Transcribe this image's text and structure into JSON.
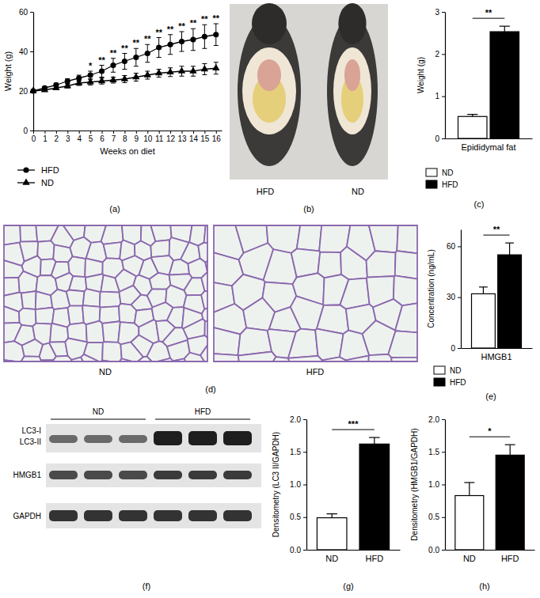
{
  "chart_data": [
    {
      "type": "line",
      "caption": "(a)",
      "x_label": "Weeks on diet",
      "y_label": "Weight (g)",
      "x": [
        0,
        1,
        2,
        3,
        4,
        5,
        6,
        7,
        8,
        9,
        10,
        11,
        12,
        13,
        14,
        15,
        16
      ],
      "xlim": [
        0,
        16.5
      ],
      "xticks": [
        0,
        1,
        2,
        3,
        4,
        5,
        6,
        7,
        8,
        9,
        10,
        11,
        12,
        13,
        14,
        15,
        16
      ],
      "ylim": [
        0,
        60
      ],
      "yticks": [
        0,
        20,
        40,
        60
      ],
      "legend": "bottom",
      "series": [
        {
          "name": "HFD",
          "color": "#000000",
          "marker": "circle",
          "line_style": "solid",
          "values": [
            20,
            21.5,
            23,
            25,
            26.5,
            28,
            30,
            33,
            35,
            37,
            39,
            42,
            43.5,
            45,
            46,
            47.5,
            48.5
          ],
          "errors": [
            0.5,
            0.8,
            1,
            1.2,
            1.5,
            2,
            3,
            3.5,
            4,
            4.5,
            4.5,
            5,
            5,
            5,
            5.5,
            6,
            5.5
          ]
        },
        {
          "name": "ND",
          "color": "#000000",
          "marker": "triangle",
          "line_style": "solid",
          "values": [
            20,
            20.5,
            21.5,
            22.5,
            24,
            24.5,
            25,
            25.5,
            26,
            27,
            28,
            29,
            29.5,
            30,
            30,
            31,
            31.5
          ],
          "errors": [
            0.5,
            0.6,
            0.8,
            1,
            1.2,
            1.5,
            1.5,
            1.5,
            1.8,
            2,
            2,
            2,
            2.2,
            2.5,
            2.5,
            2.8,
            3
          ]
        }
      ],
      "annotations": [
        {
          "x": 5,
          "text": "*"
        },
        {
          "x": 6,
          "text": "**"
        },
        {
          "x": 7,
          "text": "**"
        },
        {
          "x": 8,
          "text": "**"
        },
        {
          "x": 9,
          "text": "**"
        },
        {
          "x": 10,
          "text": "**"
        },
        {
          "x": 11,
          "text": "**"
        },
        {
          "x": 12,
          "text": "**"
        },
        {
          "x": 13,
          "text": "**"
        },
        {
          "x": 14,
          "text": "**"
        },
        {
          "x": 15,
          "text": "**"
        },
        {
          "x": 16,
          "text": "**"
        }
      ]
    },
    {
      "type": "bar",
      "caption": "(c)",
      "y_label": "Weight (g)",
      "categories": [
        "Epididymal fat"
      ],
      "ylim": [
        0,
        3
      ],
      "yticks": [
        0,
        1,
        2,
        3
      ],
      "legend": "bottom",
      "series": [
        {
          "name": "ND",
          "color": "#ffffff",
          "values": [
            0.52
          ],
          "errors": [
            0.05
          ]
        },
        {
          "name": "HFD",
          "color": "#000000",
          "values": [
            2.53
          ],
          "errors": [
            0.13
          ]
        }
      ],
      "annotations": [
        {
          "text": "**"
        }
      ]
    },
    {
      "type": "bar",
      "caption": "(e)",
      "y_label": "Concentration (ng/mL)",
      "categories": [
        "HMGB1"
      ],
      "ylim": [
        0,
        70
      ],
      "yticks": [
        0,
        30,
        60
      ],
      "legend": "bottom",
      "series": [
        {
          "name": "ND",
          "color": "#ffffff",
          "values": [
            32
          ],
          "errors": [
            4
          ]
        },
        {
          "name": "HFD",
          "color": "#000000",
          "values": [
            55
          ],
          "errors": [
            7
          ]
        }
      ],
      "annotations": [
        {
          "text": "**"
        }
      ]
    },
    {
      "type": "bar",
      "caption": "(g)",
      "y_label": "Densitometry (LC3 II/GAPDH)",
      "categories": [
        "ND",
        "HFD"
      ],
      "values": [
        0.49,
        1.62
      ],
      "errors": [
        0.06,
        0.1
      ],
      "colors": [
        "#ffffff",
        "#000000"
      ],
      "ylim": [
        0,
        2
      ],
      "yticks": [
        {
          "value": 0,
          "label": "0.0"
        },
        0.5,
        {
          "value": 1,
          "label": "1.0"
        },
        1.5,
        {
          "value": 2,
          "label": "2.0"
        }
      ],
      "annotations": [
        {
          "text": "***"
        }
      ]
    },
    {
      "type": "bar",
      "caption": "(h)",
      "y_label": "Densitometry (HMGB1/GAPDH)",
      "categories": [
        "ND",
        "HFD"
      ],
      "values": [
        0.83,
        1.45
      ],
      "errors": [
        0.2,
        0.16
      ],
      "colors": [
        "#ffffff",
        "#000000"
      ],
      "ylim": [
        0,
        2
      ],
      "yticks": [
        {
          "value": 0,
          "label": "0.0"
        },
        0.5,
        {
          "value": 1,
          "label": "1.0"
        },
        1.5,
        {
          "value": 2,
          "label": "2.0"
        }
      ],
      "annotations": [
        {
          "text": "*"
        }
      ]
    }
  ],
  "images": [
    {
      "caption": "(b)",
      "labels": [
        "HFD",
        "ND"
      ]
    },
    {
      "caption": "(d)",
      "labels": [
        "ND",
        "HFD"
      ]
    },
    {
      "caption": "(f)",
      "groups": [
        "ND",
        "HFD"
      ],
      "rows": [
        "LC3-I",
        "LC3-II",
        "HMGB1",
        "GAPDH"
      ]
    }
  ]
}
